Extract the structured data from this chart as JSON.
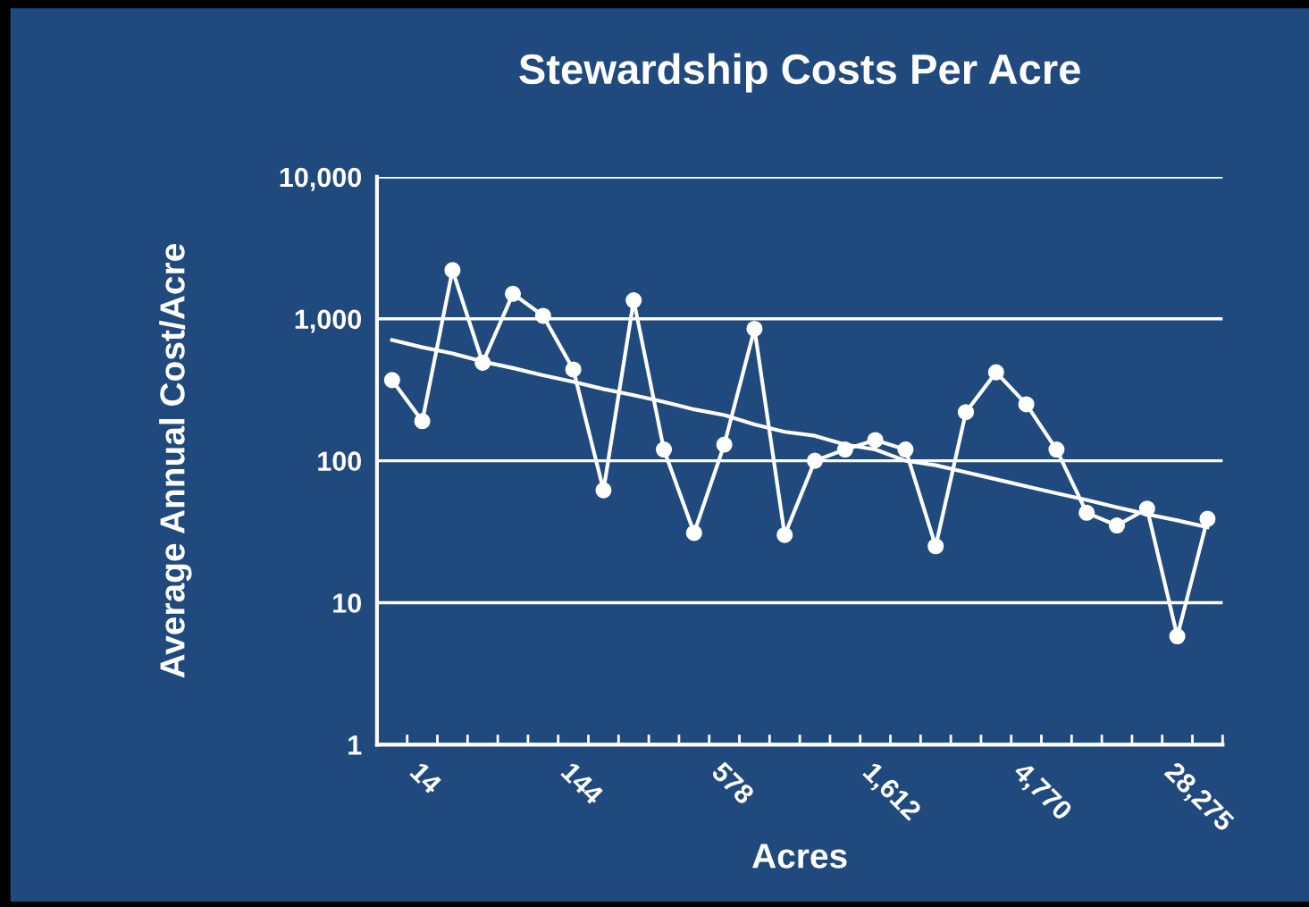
{
  "chart_data": {
    "type": "line",
    "title": "Stewardship Costs Per Acre",
    "xlabel": "Acres",
    "ylabel": "Average Annual Cost/Acre",
    "categories": [
      null,
      "14",
      null,
      null,
      null,
      null,
      "144",
      null,
      null,
      null,
      null,
      "578",
      null,
      null,
      null,
      null,
      "1,612",
      null,
      null,
      null,
      null,
      "4,770",
      null,
      null,
      null,
      null,
      "28,275",
      null
    ],
    "series": [
      {
        "color": "#ffffff",
        "marker": "circle",
        "values": [
          370,
          190,
          2200,
          490,
          1500,
          1050,
          440,
          62,
          1350,
          120,
          31,
          130,
          850,
          30,
          100,
          120,
          140,
          120,
          25,
          220,
          420,
          250,
          120,
          43,
          35,
          46,
          5.8,
          39
        ]
      },
      {
        "color": "#ffffff",
        "marker": "none",
        "values": [
          710,
          630,
          570,
          500,
          450,
          400,
          360,
          320,
          290,
          260,
          230,
          210,
          180,
          160,
          150,
          130,
          120,
          100,
          93,
          83,
          74,
          66,
          59,
          53,
          47,
          42,
          38,
          34
        ]
      }
    ],
    "log": "y",
    "ylim": [
      1,
      10000
    ],
    "yticks": [
      1,
      10,
      100,
      {
        "value": 1000,
        "label": "1,000"
      },
      {
        "value": 10000,
        "label": "10,000"
      }
    ],
    "grid": "y",
    "legend": false
  }
}
